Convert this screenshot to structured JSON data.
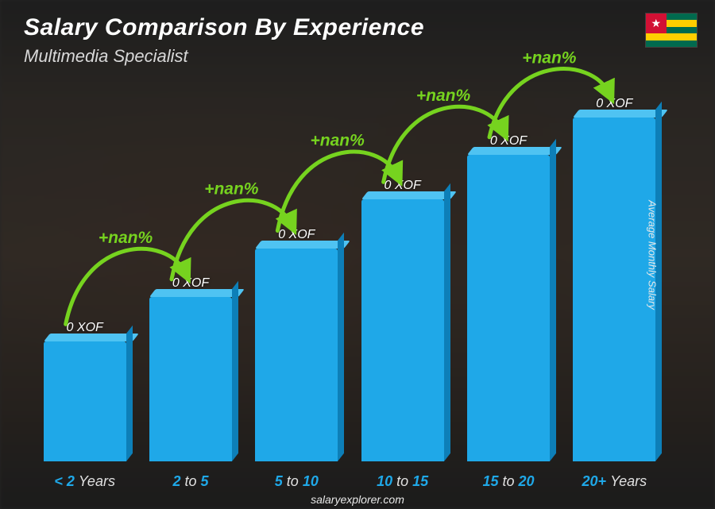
{
  "header": {
    "title": "Salary Comparison By Experience",
    "title_fontsize": 30,
    "subtitle": "Multimedia Specialist",
    "subtitle_fontsize": 22
  },
  "flag": {
    "name": "togo-flag",
    "canton_color": "#d21034",
    "star_color": "#ffffff",
    "stripe_green": "#006a4e",
    "stripe_yellow": "#ffce00"
  },
  "y_axis": {
    "label": "Average Monthly Salary",
    "fontsize": 13
  },
  "chart": {
    "type": "bar-3d",
    "bar_color_front": "#1fa8e8",
    "bar_color_top": "#4fc3f2",
    "bar_color_side": "#0d7fb8",
    "value_label_fontsize": 16,
    "x_label_fontsize": 18,
    "x_label_color": "#1fa8e8",
    "bars": [
      {
        "category_prefix": "<",
        "category_num": "2",
        "category_suffix": "Years",
        "value_label": "0 XOF",
        "height_pct": 32
      },
      {
        "category_prefix": "",
        "category_num": "2",
        "category_mid": " to ",
        "category_num2": "5",
        "category_suffix": "",
        "value_label": "0 XOF",
        "height_pct": 44
      },
      {
        "category_prefix": "",
        "category_num": "5",
        "category_mid": " to ",
        "category_num2": "10",
        "category_suffix": "",
        "value_label": "0 XOF",
        "height_pct": 57
      },
      {
        "category_prefix": "",
        "category_num": "10",
        "category_mid": " to ",
        "category_num2": "15",
        "category_suffix": "",
        "value_label": "0 XOF",
        "height_pct": 70
      },
      {
        "category_prefix": "",
        "category_num": "15",
        "category_mid": " to ",
        "category_num2": "20",
        "category_suffix": "",
        "value_label": "0 XOF",
        "height_pct": 82
      },
      {
        "category_prefix": "",
        "category_num": "20+",
        "category_suffix": "Years",
        "value_label": "0 XOF",
        "height_pct": 92
      }
    ]
  },
  "arrows": {
    "color": "#76d31f",
    "label_fontsize": 21,
    "stroke_width": 5,
    "items": [
      {
        "label": "+nan%",
        "from_bar": 0,
        "to_bar": 1
      },
      {
        "label": "+nan%",
        "from_bar": 1,
        "to_bar": 2
      },
      {
        "label": "+nan%",
        "from_bar": 2,
        "to_bar": 3
      },
      {
        "label": "+nan%",
        "from_bar": 3,
        "to_bar": 4
      },
      {
        "label": "+nan%",
        "from_bar": 4,
        "to_bar": 5
      }
    ]
  },
  "footer": {
    "text": "salaryexplorer.com",
    "fontsize": 14
  },
  "background": {
    "overlay_color": "rgba(0,0,0,0.35)"
  }
}
